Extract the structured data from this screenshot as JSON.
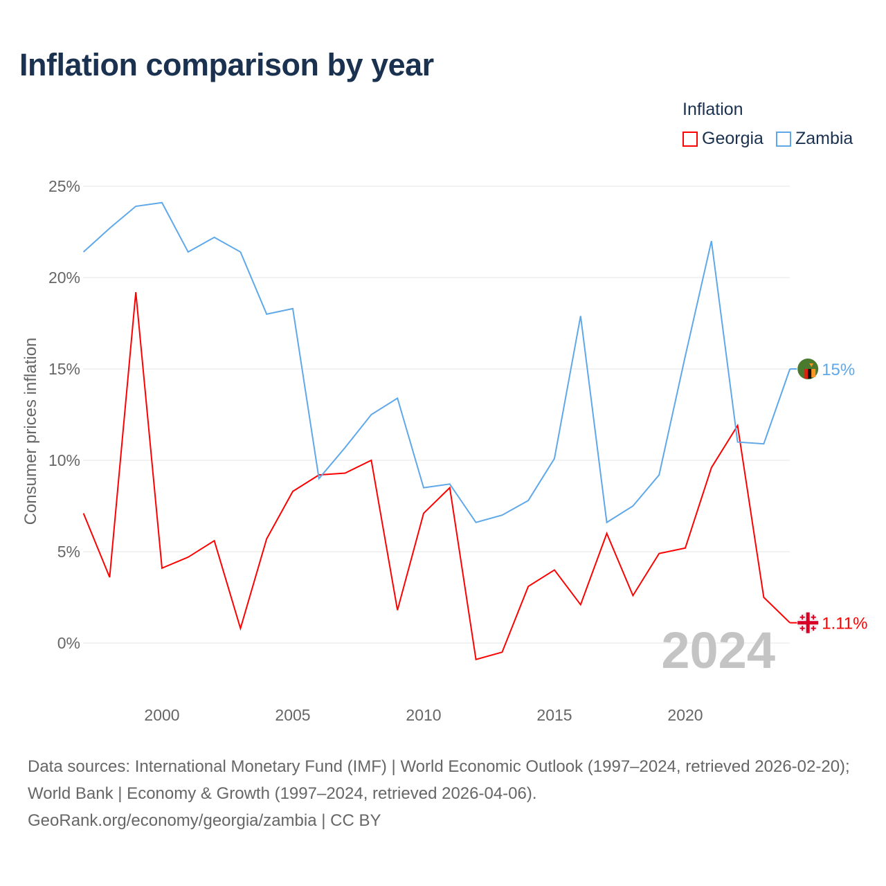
{
  "chart_data": {
    "type": "line",
    "title": "Inflation comparison by year",
    "ylabel": "Consumer prices inflation",
    "xlabel": "",
    "legend_title": "Inflation",
    "legend_placement": "top-right",
    "xlim": [
      1997,
      2024
    ],
    "ylim": [
      -3,
      25
    ],
    "x_ticks": [
      2000,
      2005,
      2010,
      2015,
      2020
    ],
    "y_ticks": [
      0,
      5,
      10,
      15,
      20,
      25
    ],
    "y_tick_labels": [
      "0%",
      "5%",
      "10%",
      "15%",
      "20%",
      "25%"
    ],
    "grid": true,
    "watermark_year": "2024",
    "x": [
      1997,
      1998,
      1999,
      2000,
      2001,
      2002,
      2003,
      2004,
      2005,
      2006,
      2007,
      2008,
      2009,
      2010,
      2011,
      2012,
      2013,
      2014,
      2015,
      2016,
      2017,
      2018,
      2019,
      2020,
      2021,
      2022,
      2023,
      2024
    ],
    "series": [
      {
        "name": "Georgia",
        "color": "#ff0000",
        "end_label": "1.11%",
        "values": [
          7.1,
          3.6,
          19.2,
          4.1,
          4.7,
          5.6,
          0.8,
          5.7,
          8.3,
          9.2,
          9.3,
          10.0,
          1.8,
          7.1,
          8.5,
          -0.9,
          -0.5,
          3.1,
          4.0,
          2.1,
          6.0,
          2.6,
          4.9,
          5.2,
          9.6,
          11.9,
          2.5,
          1.11
        ]
      },
      {
        "name": "Zambia",
        "color": "#5ea8ea",
        "end_label": "15%",
        "values": [
          21.4,
          22.7,
          23.9,
          24.1,
          21.4,
          22.2,
          21.4,
          18.0,
          18.3,
          9.0,
          10.7,
          12.5,
          13.4,
          8.5,
          8.7,
          6.6,
          7.0,
          7.8,
          10.1,
          17.9,
          6.6,
          7.5,
          9.2,
          15.7,
          22.0,
          11.0,
          10.9,
          15.0
        ]
      }
    ]
  },
  "footer": {
    "sources": "Data sources: International Monetary Fund (IMF) | World Economic Outlook (1997–2024, retrieved 2026-02-20); World Bank | Economy & Growth (1997–2024, retrieved 2026-04-06).",
    "credit": "GeoRank.org/economy/georgia/zambia | CC BY"
  }
}
